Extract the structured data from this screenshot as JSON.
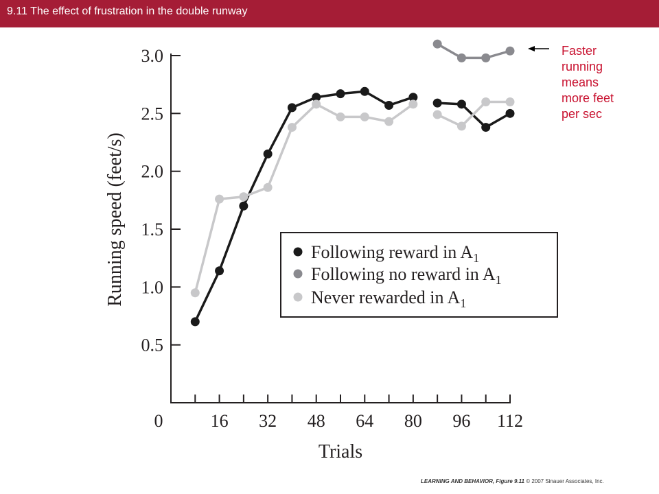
{
  "header": {
    "title": "9.11  The effect of frustration in the double runway"
  },
  "annotation": {
    "lines": [
      "Faster",
      "running",
      "means",
      "more feet",
      "per sec"
    ]
  },
  "footer": {
    "book": "LEARNING AND BEHAVIOR, Figure 9.11",
    "copyright": "© 2007 Sinauer Associates, Inc."
  },
  "colors": {
    "title_bar": "#a51d36",
    "annotation": "#c8102e",
    "reward": "#1a1a1a",
    "no_reward": "#8a8a8f",
    "never": "#c8c8ca"
  },
  "chart_data": {
    "type": "line",
    "title": "",
    "xlabel": "Trials",
    "ylabel": "Running speed (feet/s)",
    "xlim": [
      0,
      112
    ],
    "ylim": [
      0,
      3.0
    ],
    "xticks": [
      8,
      16,
      24,
      32,
      40,
      48,
      56,
      64,
      72,
      80,
      88,
      96,
      104,
      112
    ],
    "xtick_labels": [
      {
        "x": 0,
        "label": "0"
      },
      {
        "x": 16,
        "label": "16"
      },
      {
        "x": 32,
        "label": "32"
      },
      {
        "x": 48,
        "label": "48"
      },
      {
        "x": 64,
        "label": "64"
      },
      {
        "x": 80,
        "label": "80"
      },
      {
        "x": 96,
        "label": "96"
      },
      {
        "x": 112,
        "label": "112"
      }
    ],
    "yticks": [
      0.5,
      1.0,
      1.5,
      2.0,
      2.5,
      3.0
    ],
    "ytick_labels": [
      "0.5",
      "1.0",
      "1.5",
      "2.0",
      "2.5",
      "3.0"
    ],
    "legend_position": "center-right",
    "legend": [
      {
        "series": 0,
        "text": "Following reward in A",
        "sub": "1"
      },
      {
        "series": 1,
        "text": "Following no reward in A",
        "sub": "1"
      },
      {
        "series": 2,
        "text": "Never rewarded in A",
        "sub": "1"
      }
    ],
    "series": [
      {
        "colorKey": "reward",
        "segments": [
          {
            "x": [
              8,
              16,
              24,
              32,
              40,
              48,
              56,
              64,
              72,
              80
            ],
            "y": [
              0.7,
              1.14,
              1.7,
              2.15,
              2.55,
              2.64,
              2.67,
              2.69,
              2.57,
              2.64
            ]
          },
          {
            "x": [
              88,
              96,
              104,
              112
            ],
            "y": [
              2.59,
              2.58,
              2.38,
              2.5
            ]
          }
        ]
      },
      {
        "colorKey": "no_reward",
        "segments": [
          {
            "x": [
              88,
              96,
              104,
              112
            ],
            "y": [
              3.1,
              2.98,
              2.98,
              3.04
            ]
          }
        ]
      },
      {
        "colorKey": "never",
        "segments": [
          {
            "x": [
              8,
              16,
              24,
              32,
              40,
              48,
              56,
              64,
              72,
              80
            ],
            "y": [
              0.95,
              1.76,
              1.78,
              1.86,
              2.38,
              2.58,
              2.47,
              2.47,
              2.43,
              2.58
            ]
          },
          {
            "x": [
              88,
              96,
              104,
              112
            ],
            "y": [
              2.49,
              2.39,
              2.6,
              2.6
            ]
          }
        ]
      }
    ]
  }
}
